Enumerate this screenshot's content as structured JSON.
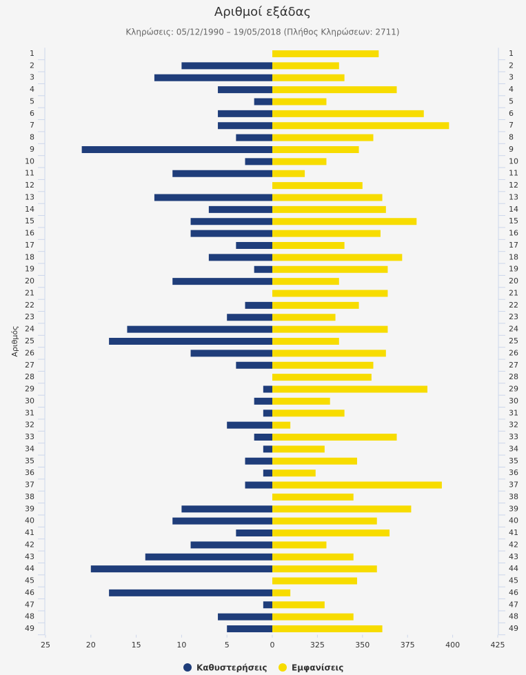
{
  "chart_data": {
    "type": "butterfly-bar",
    "title": "Αριθμοί εξάδας",
    "subtitle": "Κληρώσεις: 05/12/1990 – 19/05/2018 (Πλήθος Κληρώσεων: 2711)",
    "y_label": "Αριθμός",
    "categories": [
      "1",
      "2",
      "3",
      "4",
      "5",
      "6",
      "7",
      "8",
      "9",
      "10",
      "11",
      "12",
      "13",
      "14",
      "15",
      "16",
      "17",
      "18",
      "19",
      "20",
      "21",
      "22",
      "23",
      "24",
      "25",
      "26",
      "27",
      "28",
      "29",
      "30",
      "31",
      "32",
      "33",
      "34",
      "35",
      "36",
      "37",
      "38",
      "39",
      "40",
      "41",
      "42",
      "43",
      "44",
      "45",
      "46",
      "47",
      "48",
      "49"
    ],
    "series": [
      {
        "name": "Καθυστερήσεις",
        "color": "#1f3d7a",
        "axis": "x",
        "values": [
          0,
          10,
          13,
          6,
          2,
          6,
          6,
          4,
          21,
          3,
          11,
          0,
          13,
          7,
          9,
          9,
          4,
          7,
          2,
          11,
          0,
          3,
          5,
          16,
          18,
          9,
          4,
          0,
          1,
          2,
          1,
          5,
          2,
          1,
          3,
          1,
          3,
          0,
          10,
          11,
          4,
          9,
          14,
          20,
          0,
          18,
          1,
          6,
          5
        ]
      },
      {
        "name": "Εμφανίσεις",
        "color": "#f7dc00",
        "axis": "x2",
        "values": [
          359,
          337,
          340,
          369,
          330,
          384,
          398,
          356,
          348,
          330,
          318,
          350,
          361,
          363,
          380,
          360,
          340,
          372,
          364,
          337,
          364,
          348,
          335,
          364,
          337,
          363,
          356,
          355,
          386,
          332,
          340,
          310,
          369,
          329,
          347,
          324,
          394,
          345,
          377,
          358,
          365,
          330,
          345,
          358,
          347,
          310,
          329,
          345,
          361
        ]
      }
    ],
    "xlim": [
      0,
      25
    ],
    "xticks": [
      0,
      5,
      10,
      15,
      20,
      25
    ],
    "x2lim": [
      300,
      425
    ],
    "x2ticks": [
      325,
      350,
      375,
      400,
      425
    ]
  }
}
